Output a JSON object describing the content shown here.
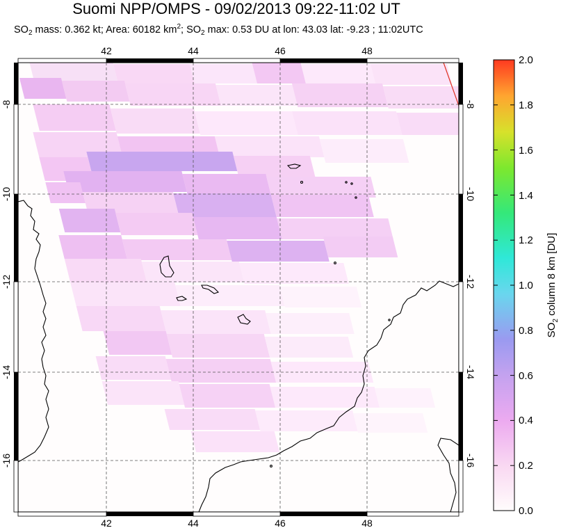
{
  "title": "Suomi NPP/OMPS - 09/02/2013 09:22-11:02 UT",
  "subtitle": {
    "prefix": "SO",
    "so2_sub": "2",
    "mass_text": " mass: 0.362 kt; Area: 60182 km",
    "area_sup": "2",
    "mid_text": "; SO",
    "max_sub": "2",
    "max_text": " max: 0.53 DU at lon: 43.03 lat: -9.23 ; 11:02UTC"
  },
  "map": {
    "lon_ticks": [
      "42",
      "44",
      "46",
      "48"
    ],
    "lat_ticks": [
      "-8",
      "-10",
      "-12",
      "-14",
      "-16"
    ],
    "coastline_color": "#000000",
    "grid": "dashed"
  },
  "colorbar": {
    "label_prefix": "SO",
    "label_sub": "2",
    "label_suffix": " column 8 km [DU]",
    "ticks": [
      "2.0",
      "1.8",
      "1.6",
      "1.4",
      "1.2",
      "1.0",
      "0.8",
      "0.6",
      "0.4",
      "0.2",
      "0.0"
    ],
    "range": [
      0.0,
      2.0
    ],
    "colors": [
      "#fffcfc",
      "#f9d8f2",
      "#ecaaf0",
      "#c4a2ef",
      "#9a9af0",
      "#6ad6ee",
      "#2fe8d8",
      "#34e87a",
      "#7de82e",
      "#d7e12b",
      "#ffa530",
      "#ff3a20"
    ]
  }
}
